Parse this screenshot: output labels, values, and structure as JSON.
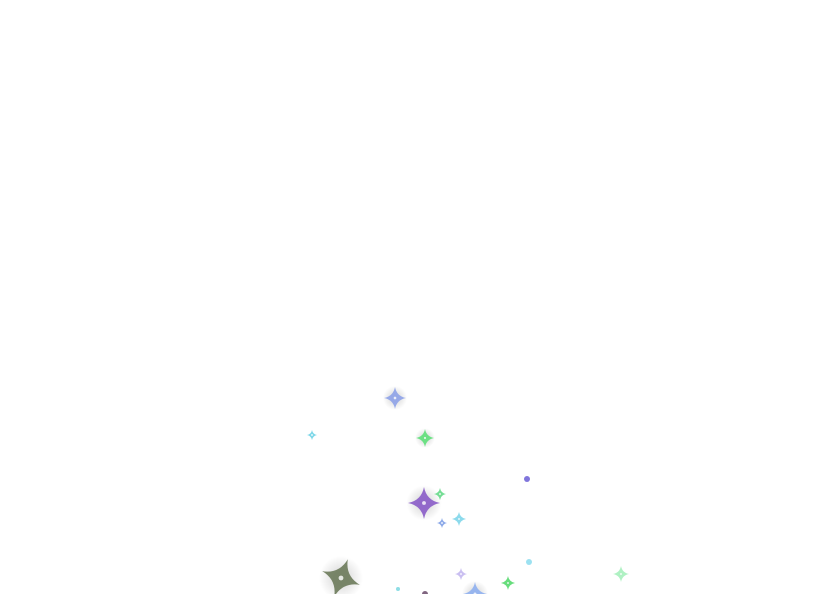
{
  "scene": {
    "background_color": "#ffffff",
    "effect": "sparkle-particles"
  },
  "sparkles": [
    {
      "color": "#8ea2e8",
      "shape": "four-point-star",
      "glow": true
    },
    {
      "color": "#6fd3e6",
      "shape": "four-point-star",
      "glow": false
    },
    {
      "color": "#5fe07a",
      "shape": "four-point-star",
      "glow": true
    },
    {
      "color": "#6a5ed6",
      "shape": "dot",
      "glow": false
    },
    {
      "color": "#8a5cc8",
      "shape": "four-point-star",
      "glow": true
    },
    {
      "color": "#66d98a",
      "shape": "four-point-star",
      "glow": false
    },
    {
      "color": "#7fd6ea",
      "shape": "four-point-star",
      "glow": false
    },
    {
      "color": "#7fa0e6",
      "shape": "four-point-star",
      "glow": false
    },
    {
      "color": "#8bdcef",
      "shape": "dot",
      "glow": false
    },
    {
      "color": "#a6f0bc",
      "shape": "four-point-star",
      "glow": false
    },
    {
      "color": "#6b7a5a",
      "shape": "four-point-star",
      "glow": true
    },
    {
      "color": "#c4b8f0",
      "shape": "four-point-star",
      "glow": false
    },
    {
      "color": "#57d96e",
      "shape": "four-point-star",
      "glow": false
    },
    {
      "color": "#8fb0f0",
      "shape": "four-point-star",
      "glow": true
    },
    {
      "color": "#7ad7e0",
      "shape": "dot",
      "glow": false
    },
    {
      "color": "#6a4a6a",
      "shape": "dot",
      "glow": false
    }
  ]
}
